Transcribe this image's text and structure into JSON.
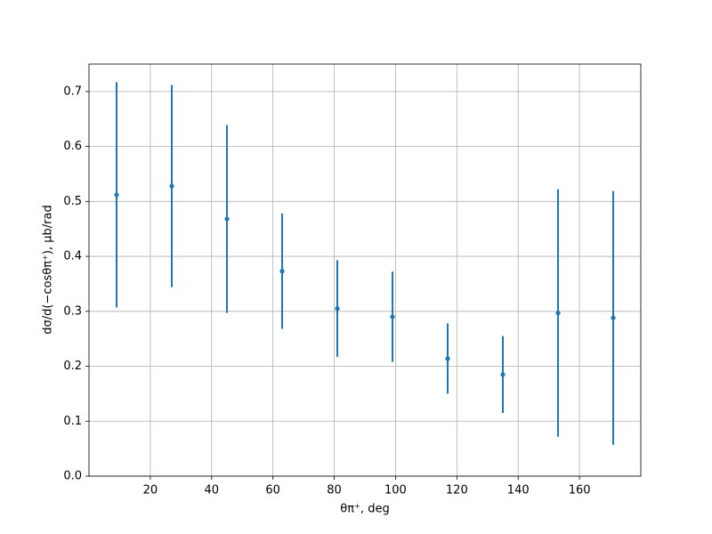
{
  "chart_data": {
    "type": "errorbar",
    "xlabel": "θπ⁺, deg",
    "ylabel": "dσ/d(−cosθπ⁺), μb/rad",
    "x": [
      9,
      27,
      45,
      63,
      81,
      99,
      117,
      135,
      153,
      171
    ],
    "values": [
      0.512,
      0.528,
      0.468,
      0.373,
      0.305,
      0.29,
      0.214,
      0.185,
      0.297,
      0.288
    ],
    "errors": [
      0.205,
      0.184,
      0.171,
      0.105,
      0.088,
      0.082,
      0.064,
      0.07,
      0.225,
      0.231
    ],
    "color": "#1f77b4",
    "xlim": [
      0,
      180
    ],
    "ylim": [
      0,
      0.75
    ],
    "xticks": [
      20,
      40,
      60,
      80,
      100,
      120,
      140,
      160
    ],
    "yticks": [
      {
        "value": 0,
        "label": "0.0"
      },
      0.1,
      0.2,
      0.3,
      0.4,
      0.5,
      0.6,
      0.7
    ],
    "grid": true
  }
}
